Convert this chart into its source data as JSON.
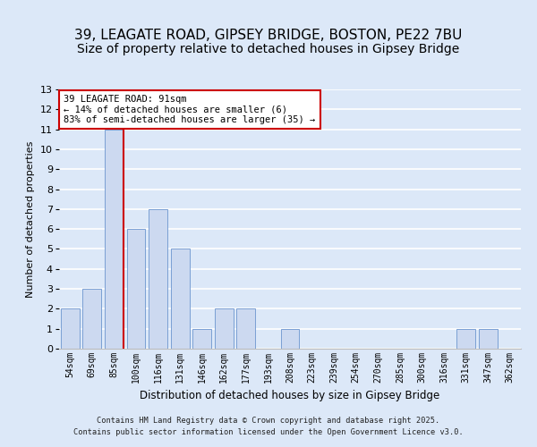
{
  "title1": "39, LEAGATE ROAD, GIPSEY BRIDGE, BOSTON, PE22 7BU",
  "title2": "Size of property relative to detached houses in Gipsey Bridge",
  "xlabel": "Distribution of detached houses by size in Gipsey Bridge",
  "ylabel": "Number of detached properties",
  "bin_labels": [
    "54sqm",
    "69sqm",
    "85sqm",
    "100sqm",
    "116sqm",
    "131sqm",
    "146sqm",
    "162sqm",
    "177sqm",
    "193sqm",
    "208sqm",
    "223sqm",
    "239sqm",
    "254sqm",
    "270sqm",
    "285sqm",
    "300sqm",
    "316sqm",
    "331sqm",
    "347sqm",
    "362sqm"
  ],
  "bar_heights": [
    2,
    3,
    11,
    6,
    7,
    5,
    1,
    2,
    2,
    0,
    1,
    0,
    0,
    0,
    0,
    0,
    0,
    0,
    1,
    1,
    0
  ],
  "bar_color": "#ccd9f0",
  "bar_edge_color": "#7a9fd4",
  "vline_idx": 2,
  "vline_color": "#cc0000",
  "annotation_title": "39 LEAGATE ROAD: 91sqm",
  "annotation_line1": "← 14% of detached houses are smaller (6)",
  "annotation_line2": "83% of semi-detached houses are larger (35) →",
  "annotation_box_facecolor": "white",
  "annotation_box_edgecolor": "#cc0000",
  "ylim_max": 13,
  "yticks": [
    0,
    1,
    2,
    3,
    4,
    5,
    6,
    7,
    8,
    9,
    10,
    11,
    12,
    13
  ],
  "footer1": "Contains HM Land Registry data © Crown copyright and database right 2025.",
  "footer2": "Contains public sector information licensed under the Open Government Licence v3.0.",
  "bg_color": "#dce8f8",
  "grid_color": "#ffffff",
  "title1_fontsize": 11,
  "title2_fontsize": 10
}
